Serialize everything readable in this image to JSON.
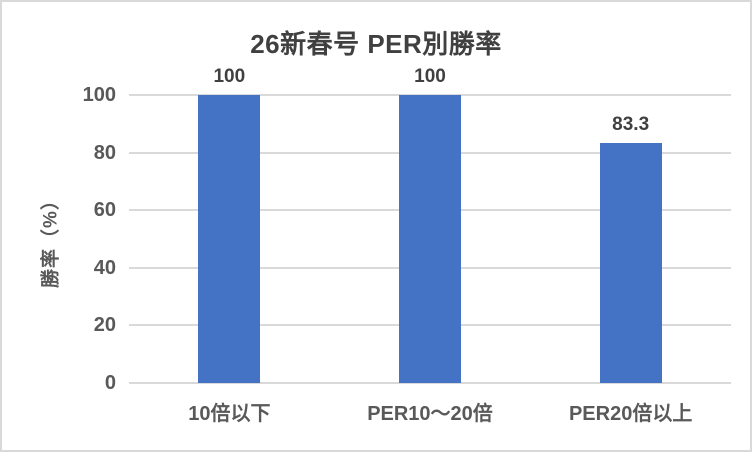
{
  "chart_data": {
    "type": "bar",
    "title": "26新春号 PER別勝率",
    "ylabel": "勝率（%）",
    "xlabel": "",
    "categories": [
      "10倍以下",
      "PER10～20倍",
      "PER20倍以上"
    ],
    "values": [
      100,
      100,
      83.3
    ],
    "data_labels": [
      "100",
      "100",
      "83.3"
    ],
    "ylim": [
      0,
      100
    ],
    "ytick_step": 20,
    "ytick_labels": [
      "0",
      "20",
      "40",
      "60",
      "80",
      "100"
    ],
    "grid": true,
    "legend_position": "none",
    "colors": {
      "bar": "#4472c4",
      "gridline": "#d9d9d9",
      "axis_text": "#595959",
      "title_text": "#404040",
      "data_label_text": "#404040",
      "chart_border": "#d9d9d9",
      "background": "#ffffff"
    }
  }
}
